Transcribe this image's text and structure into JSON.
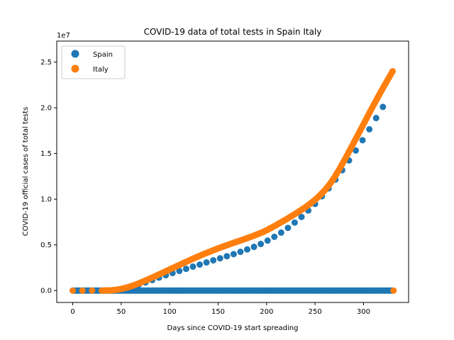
{
  "chart_data": {
    "type": "scatter",
    "title": "COVID-19 data of total tests in Spain Italy",
    "xlabel": "Days since COVID-19 start spreading",
    "ylabel": "COVID-19 official cases of total tests",
    "y_offset_text": "1e7",
    "xlim": [
      -16.5,
      346.5
    ],
    "ylim": [
      -1300000,
      27300000
    ],
    "x_ticks": [
      0,
      50,
      100,
      150,
      200,
      250,
      300
    ],
    "y_ticks": [
      0,
      5000000,
      10000000,
      15000000,
      20000000,
      25000000
    ],
    "y_tick_labels": [
      "0.0",
      "0.5",
      "1.0",
      "1.5",
      "2.0",
      "2.5"
    ],
    "grid": false,
    "legend_position": "top-left",
    "series": [
      {
        "name": "Spain",
        "color": "#1f77b4",
        "marker": "circle",
        "baseline_points": {
          "x_start": 0,
          "x_end": 330,
          "step": 1,
          "y": 0
        },
        "points": [
          [
            40,
            0
          ],
          [
            47,
            100000
          ],
          [
            54,
            250000
          ],
          [
            61,
            420000
          ],
          [
            68,
            640000
          ],
          [
            75,
            880000
          ],
          [
            82,
            1150000
          ],
          [
            89,
            1420000
          ],
          [
            96,
            1680000
          ],
          [
            103,
            1920000
          ],
          [
            110,
            2150000
          ],
          [
            117,
            2380000
          ],
          [
            124,
            2620000
          ],
          [
            131,
            2850000
          ],
          [
            138,
            3080000
          ],
          [
            145,
            3310000
          ],
          [
            152,
            3530000
          ],
          [
            159,
            3760000
          ],
          [
            166,
            3990000
          ],
          [
            173,
            4240000
          ],
          [
            180,
            4500000
          ],
          [
            187,
            4780000
          ],
          [
            194,
            5100000
          ],
          [
            201,
            5470000
          ],
          [
            208,
            5880000
          ],
          [
            215,
            6340000
          ],
          [
            222,
            6860000
          ],
          [
            229,
            7440000
          ],
          [
            236,
            8060000
          ],
          [
            243,
            8760000
          ],
          [
            250,
            9480000
          ],
          [
            257,
            10320000
          ],
          [
            264,
            11180000
          ],
          [
            271,
            12150000
          ],
          [
            278,
            13170000
          ],
          [
            285,
            14240000
          ],
          [
            292,
            15330000
          ],
          [
            299,
            16450000
          ],
          [
            306,
            17650000
          ],
          [
            313,
            18880000
          ],
          [
            320,
            20100000
          ]
        ]
      },
      {
        "name": "Italy",
        "color": "#ff7f0e",
        "marker": "circle",
        "points": [
          [
            0,
            0
          ],
          [
            10,
            0
          ],
          [
            20,
            0
          ],
          [
            30,
            0
          ],
          [
            35,
            10000
          ],
          [
            40,
            30000
          ],
          [
            45,
            90000
          ],
          [
            50,
            180000
          ],
          [
            55,
            310000
          ],
          [
            60,
            470000
          ],
          [
            65,
            660000
          ],
          [
            70,
            870000
          ],
          [
            75,
            1100000
          ],
          [
            80,
            1330000
          ],
          [
            85,
            1570000
          ],
          [
            90,
            1810000
          ],
          [
            95,
            2060000
          ],
          [
            100,
            2310000
          ],
          [
            105,
            2560000
          ],
          [
            110,
            2800000
          ],
          [
            115,
            3050000
          ],
          [
            120,
            3290000
          ],
          [
            125,
            3530000
          ],
          [
            130,
            3760000
          ],
          [
            135,
            3990000
          ],
          [
            140,
            4200000
          ],
          [
            145,
            4410000
          ],
          [
            150,
            4620000
          ],
          [
            155,
            4810000
          ],
          [
            160,
            5000000
          ],
          [
            165,
            5190000
          ],
          [
            170,
            5370000
          ],
          [
            175,
            5550000
          ],
          [
            180,
            5740000
          ],
          [
            185,
            5930000
          ],
          [
            190,
            6140000
          ],
          [
            195,
            6350000
          ],
          [
            200,
            6600000
          ],
          [
            205,
            6880000
          ],
          [
            210,
            7170000
          ],
          [
            215,
            7480000
          ],
          [
            220,
            7780000
          ],
          [
            225,
            8100000
          ],
          [
            230,
            8420000
          ],
          [
            235,
            8770000
          ],
          [
            240,
            9120000
          ],
          [
            245,
            9510000
          ],
          [
            250,
            9930000
          ],
          [
            255,
            10420000
          ],
          [
            260,
            10970000
          ],
          [
            265,
            11620000
          ],
          [
            270,
            12390000
          ],
          [
            275,
            13270000
          ],
          [
            280,
            14220000
          ],
          [
            285,
            15190000
          ],
          [
            290,
            16190000
          ],
          [
            295,
            17200000
          ],
          [
            300,
            18210000
          ],
          [
            305,
            19230000
          ],
          [
            310,
            20220000
          ],
          [
            315,
            21200000
          ],
          [
            320,
            22150000
          ],
          [
            325,
            23080000
          ],
          [
            330,
            24000000
          ],
          [
            331,
            0
          ]
        ]
      }
    ]
  }
}
